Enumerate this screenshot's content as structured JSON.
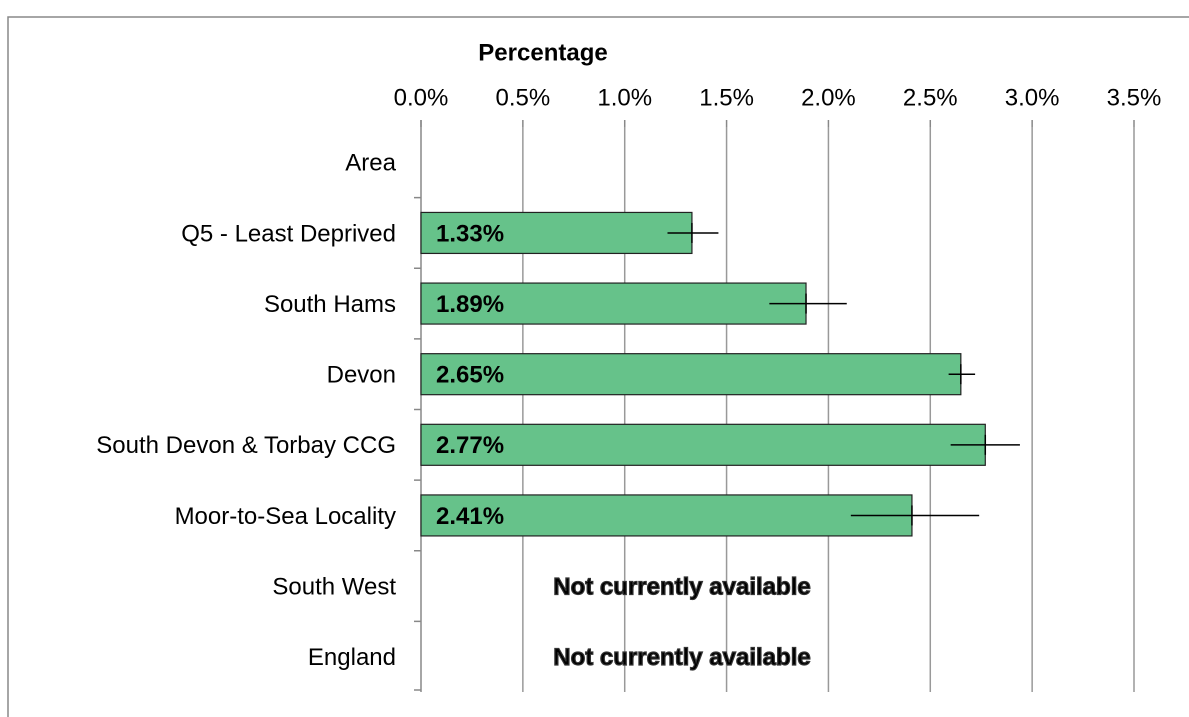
{
  "chart_data": {
    "type": "bar",
    "orientation": "horizontal",
    "x_label": "Percentage",
    "categories": [
      "Area",
      "Q5 - Least Deprived",
      "South Hams",
      "Devon",
      "South Devon & Torbay CCG",
      "Moor-to-Sea Locality",
      "South West",
      "England"
    ],
    "values": [
      null,
      1.33,
      1.89,
      2.65,
      2.77,
      2.41,
      null,
      null
    ],
    "value_labels": [
      null,
      "1.33%",
      "1.89%",
      "2.65%",
      "2.77%",
      "2.41%",
      "Not currently available",
      "Not currently available"
    ],
    "ci_low": [
      null,
      1.21,
      1.71,
      2.59,
      2.6,
      2.11,
      null,
      null
    ],
    "ci_high": [
      null,
      1.46,
      2.09,
      2.72,
      2.94,
      2.74,
      null,
      null
    ],
    "color": "#66c28a",
    "xlim": [
      0,
      3.5
    ],
    "xticks": [
      {
        "value": 0,
        "label": "0.0%"
      },
      {
        "value": 0.5,
        "label": "0.5%"
      },
      {
        "value": 1,
        "label": "1.0%"
      },
      {
        "value": 1.5,
        "label": "1.5%"
      },
      {
        "value": 2,
        "label": "2.0%"
      },
      {
        "value": 2.5,
        "label": "2.5%"
      },
      {
        "value": 3,
        "label": "3.0%"
      },
      {
        "value": 3.5,
        "label": "3.5%"
      }
    ],
    "grid": true
  }
}
